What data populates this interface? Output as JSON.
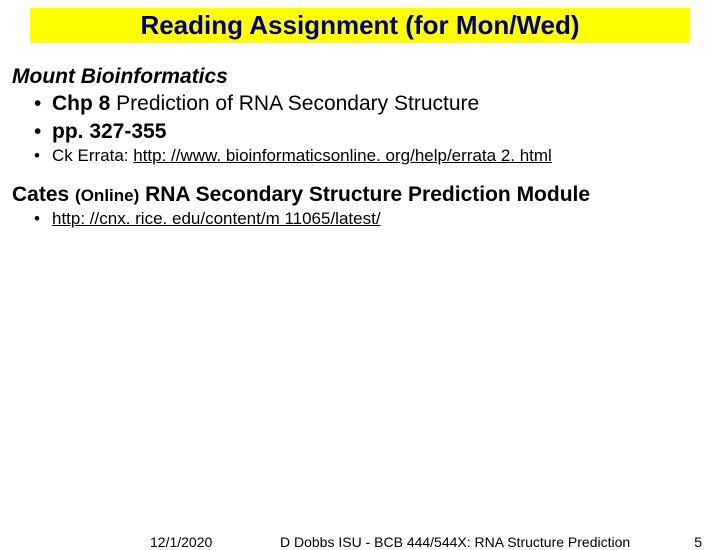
{
  "title": "Reading Assignment (for Mon/Wed)",
  "colors": {
    "title_bg": "#ffff00",
    "title_fg": "#000080",
    "body_bg": "#ffffff",
    "text": "#000000"
  },
  "section1": {
    "heading": "Mount Bioinformatics",
    "items": [
      {
        "bold": "Chp 8",
        "rest": " Prediction of RNA Secondary Structure"
      },
      {
        "bold": "pp. 327-355",
        "rest": ""
      }
    ],
    "sub": {
      "prefix": "Ck Errata: ",
      "url": "http: //www. bioinformaticsonline. org/help/errata 2. html"
    }
  },
  "section2": {
    "bold": "Cates",
    "online": "(Online)",
    "rest": " RNA Secondary Structure Prediction Module",
    "sub_url": "http: //cnx. rice. edu/content/m 11065/latest/"
  },
  "footer": {
    "date": "12/1/2020",
    "mid": "D Dobbs ISU - BCB 444/544X: RNA Structure Prediction",
    "page": "5"
  }
}
